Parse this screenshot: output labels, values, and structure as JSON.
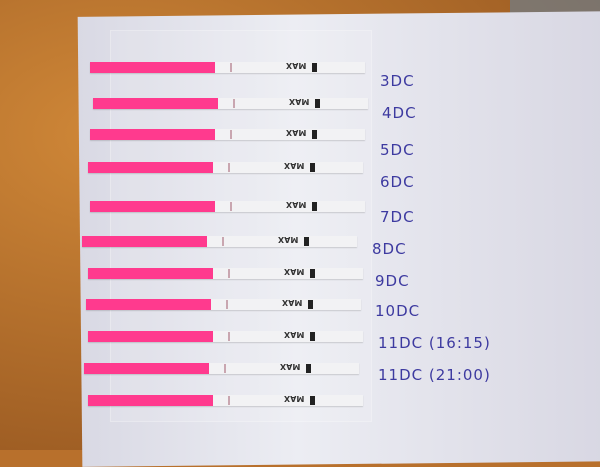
{
  "colors": {
    "strip_pink": "#ff3a8e",
    "ink": "#3d3aa0",
    "background": "#b8702c"
  },
  "strip_text": "MAX",
  "labels": [
    "3DC",
    "4DC",
    "5DC",
    "6DC",
    "7DC",
    "8DC",
    "9DC",
    "10DC",
    "11DC (16:15)",
    "11DC (21:00)"
  ]
}
